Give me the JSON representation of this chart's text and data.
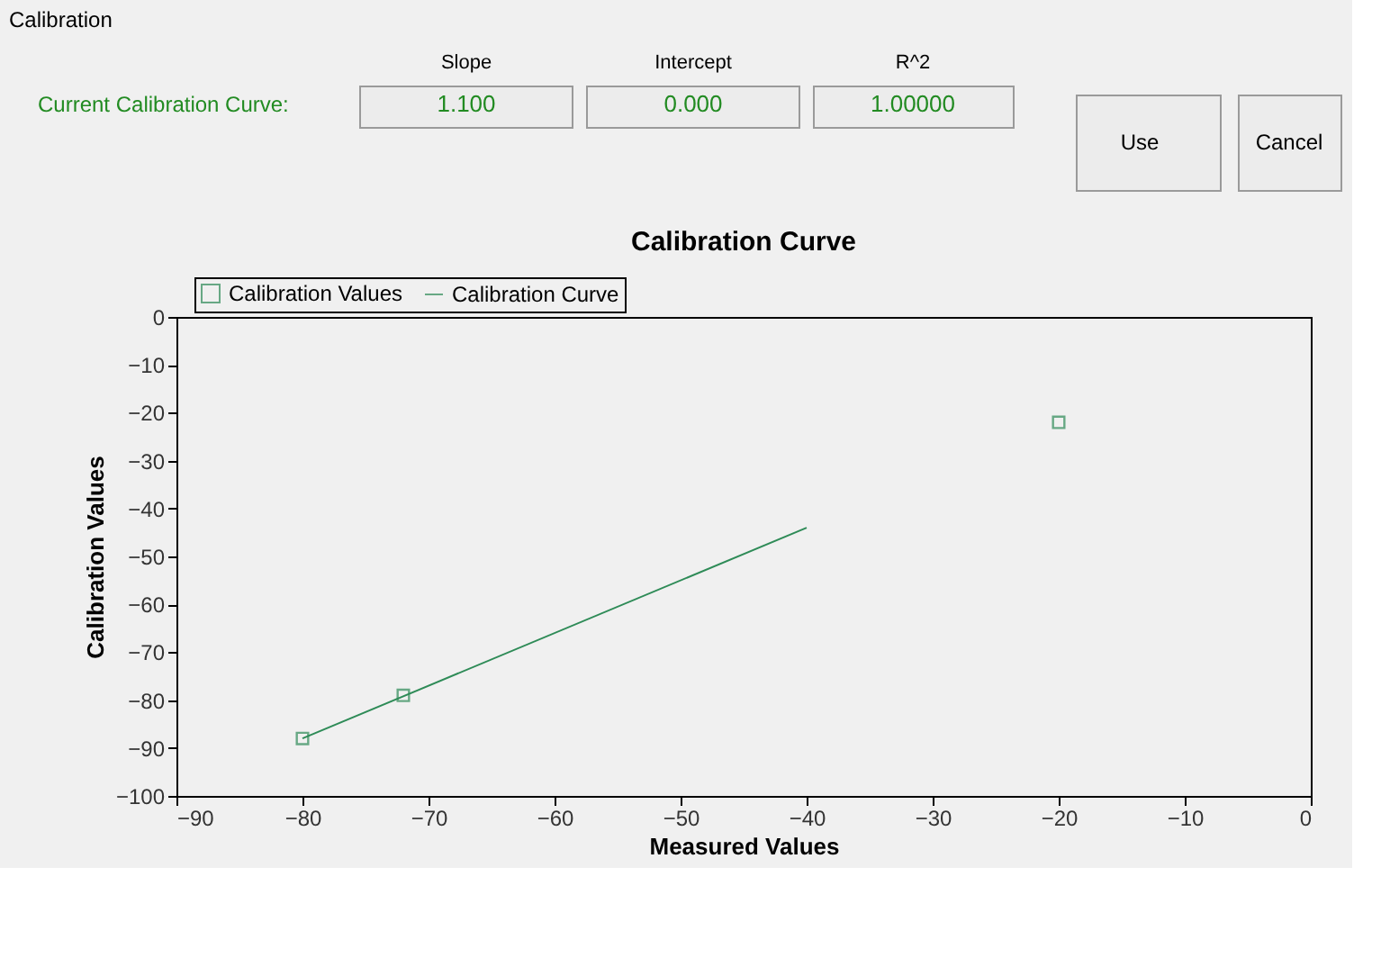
{
  "chart_data": {
    "type": "scatter",
    "title": "Calibration Curve",
    "xlabel": "Measured Values",
    "ylabel": "Calibration Values",
    "annotations": [
      "Calibration",
      "Current Calibration Curve:",
      "Slope",
      "1.100",
      "Intercept",
      "0.000",
      "R^2",
      "1.00000",
      "Use",
      "Cancel"
    ],
    "series": [
      {
        "name": "Calibration Values",
        "marker": "square",
        "color": "#2e8b57",
        "x": [
          -80,
          -72,
          -20
        ],
        "values": [
          -88,
          -79,
          -22
        ]
      },
      {
        "name": "Calibration Curve",
        "type": "line",
        "marker": "none",
        "color": "#2e8b57",
        "x": [
          -80,
          -40
        ],
        "values": [
          -88,
          -44
        ]
      }
    ],
    "xlim": [
      -90,
      0
    ],
    "xticks": [
      -90,
      -80,
      -70,
      -60,
      -50,
      -40,
      -30,
      -20,
      -10,
      0
    ],
    "ylim": [
      -100,
      0
    ],
    "yticks": [
      -100,
      -90,
      -80,
      -70,
      -60,
      -50,
      -40,
      -30,
      -20,
      -10,
      0
    ],
    "grid": false,
    "legend": "top left"
  }
}
